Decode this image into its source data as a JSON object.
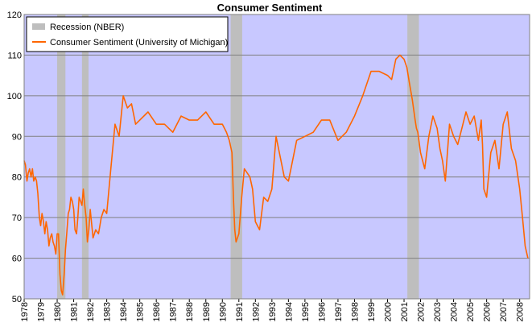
{
  "chart_data": {
    "type": "line",
    "title": "Consumer Sentiment",
    "xlabel": "",
    "ylabel": "",
    "xlim": [
      1978.0,
      2008.6
    ],
    "ylim": [
      50,
      120
    ],
    "y_ticks": [
      50,
      60,
      70,
      80,
      90,
      100,
      110,
      120
    ],
    "x_tick_labels": [
      "1978",
      "1979",
      "1980",
      "1981",
      "1982",
      "1983",
      "1984",
      "1985",
      "1986",
      "1987",
      "1988",
      "1989",
      "1990",
      "1991",
      "1992",
      "1993",
      "1994",
      "1995",
      "1996",
      "1997",
      "1998",
      "1999",
      "2000",
      "2001",
      "2002",
      "2003",
      "2004",
      "2005",
      "2006",
      "2007",
      "2008"
    ],
    "grid": "horizontal",
    "legend_position": "top-left",
    "colors": {
      "plot_bg": "#c8c8ff",
      "line": "#ff6600",
      "recession": "#bebebe",
      "grid": "#808080"
    },
    "recessions": {
      "name": "Recession (NBER)",
      "periods": [
        [
          1980.0,
          1980.5
        ],
        [
          1981.5,
          1981.9
        ],
        [
          1990.5,
          1991.2
        ],
        [
          2001.2,
          2001.9
        ]
      ]
    },
    "series": [
      {
        "name": "Consumer Sentiment (University of Michigan)",
        "x": [
          1978.0,
          1978.08,
          1978.17,
          1978.25,
          1978.33,
          1978.42,
          1978.5,
          1978.58,
          1978.67,
          1978.75,
          1978.83,
          1978.92,
          1979.0,
          1979.08,
          1979.17,
          1979.25,
          1979.33,
          1979.42,
          1979.5,
          1979.58,
          1979.67,
          1979.75,
          1979.83,
          1979.92,
          1980.0,
          1980.08,
          1980.17,
          1980.25,
          1980.33,
          1980.42,
          1980.5,
          1980.58,
          1980.67,
          1980.75,
          1980.83,
          1980.92,
          1981.0,
          1981.08,
          1981.17,
          1981.25,
          1981.33,
          1981.42,
          1981.5,
          1981.58,
          1981.67,
          1981.75,
          1981.83,
          1981.92,
          1982.0,
          1982.17,
          1982.33,
          1982.5,
          1982.67,
          1982.83,
          1983.0,
          1983.25,
          1983.5,
          1983.75,
          1984.0,
          1984.25,
          1984.5,
          1984.75,
          1985.0,
          1985.5,
          1986.0,
          1986.5,
          1987.0,
          1987.5,
          1988.0,
          1988.5,
          1989.0,
          1989.5,
          1990.0,
          1990.25,
          1990.42,
          1990.58,
          1990.67,
          1990.75,
          1990.83,
          1991.0,
          1991.17,
          1991.33,
          1991.5,
          1991.67,
          1991.83,
          1992.0,
          1992.25,
          1992.5,
          1992.75,
          1993.0,
          1993.25,
          1993.5,
          1993.75,
          1994.0,
          1994.5,
          1995.0,
          1995.5,
          1996.0,
          1996.5,
          1997.0,
          1997.5,
          1998.0,
          1998.5,
          1999.0,
          1999.5,
          2000.0,
          2000.25,
          2000.5,
          2000.75,
          2001.0,
          2001.17,
          2001.33,
          2001.5,
          2001.67,
          2001.75,
          2001.83,
          2002.0,
          2002.25,
          2002.5,
          2002.75,
          2003.0,
          2003.17,
          2003.33,
          2003.5,
          2003.75,
          2004.0,
          2004.25,
          2004.5,
          2004.75,
          2005.0,
          2005.25,
          2005.5,
          2005.67,
          2005.75,
          2005.83,
          2006.0,
          2006.25,
          2006.5,
          2006.75,
          2007.0,
          2007.25,
          2007.5,
          2007.75,
          2008.0,
          2008.17,
          2008.33,
          2008.5
        ],
        "y": [
          84,
          83,
          79,
          81,
          82,
          80,
          82,
          79,
          80,
          79,
          76,
          70,
          68,
          71,
          69,
          66,
          69,
          67,
          63,
          65,
          66,
          64,
          63,
          61,
          66,
          66,
          56,
          52,
          51,
          56,
          62,
          66,
          71,
          72,
          75,
          74,
          72,
          67,
          66,
          70,
          75,
          74,
          73,
          77,
          73,
          70,
          64,
          67,
          72,
          65,
          67,
          66,
          70,
          72,
          71,
          82,
          93,
          90,
          100,
          97,
          98,
          93,
          94,
          96,
          93,
          93,
          91,
          95,
          94,
          94,
          96,
          93,
          93,
          91,
          89,
          86,
          75,
          67,
          64,
          66,
          75,
          82,
          81,
          80,
          77,
          69,
          67,
          75,
          74,
          77,
          90,
          85,
          80,
          79,
          89,
          90,
          91,
          94,
          94,
          89,
          91,
          95,
          100,
          106,
          106,
          105,
          104,
          109,
          110,
          109,
          107,
          103,
          99,
          94,
          92,
          91,
          86,
          82,
          90,
          95,
          92,
          87,
          84,
          79,
          93,
          90,
          88,
          92,
          96,
          93,
          95,
          89,
          94,
          88,
          77,
          75,
          86,
          89,
          82,
          93,
          96,
          87,
          84,
          77,
          70,
          63,
          60
        ]
      }
    ]
  }
}
